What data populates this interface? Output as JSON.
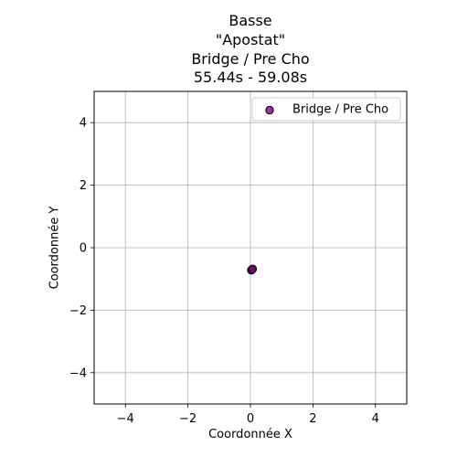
{
  "chart_data": {
    "type": "scatter",
    "title_lines": [
      "Basse",
      "\"Apostat\"",
      "Bridge / Pre Cho",
      "55.44s - 59.08s"
    ],
    "xlabel": "Coordonnée X",
    "ylabel": "Coordonnée Y",
    "xlim": [
      -5,
      5
    ],
    "ylim": [
      -5,
      5
    ],
    "xticks": [
      -4,
      -2,
      0,
      2,
      4
    ],
    "yticks": [
      -4,
      -2,
      0,
      2,
      4
    ],
    "xtick_labels": [
      "−4",
      "−2",
      "0",
      "2",
      "4"
    ],
    "ytick_labels": [
      "−4",
      "−2",
      "0",
      "2",
      "4"
    ],
    "grid": true,
    "legend_position": "top-right",
    "series": [
      {
        "name": "Bridge / Pre Cho",
        "color": "#800080",
        "edge_color": "#000000",
        "points": [
          {
            "x": 0.05,
            "y": -0.7
          },
          {
            "x": 0.03,
            "y": -0.72
          },
          {
            "x": 0.07,
            "y": -0.68
          }
        ]
      }
    ]
  }
}
